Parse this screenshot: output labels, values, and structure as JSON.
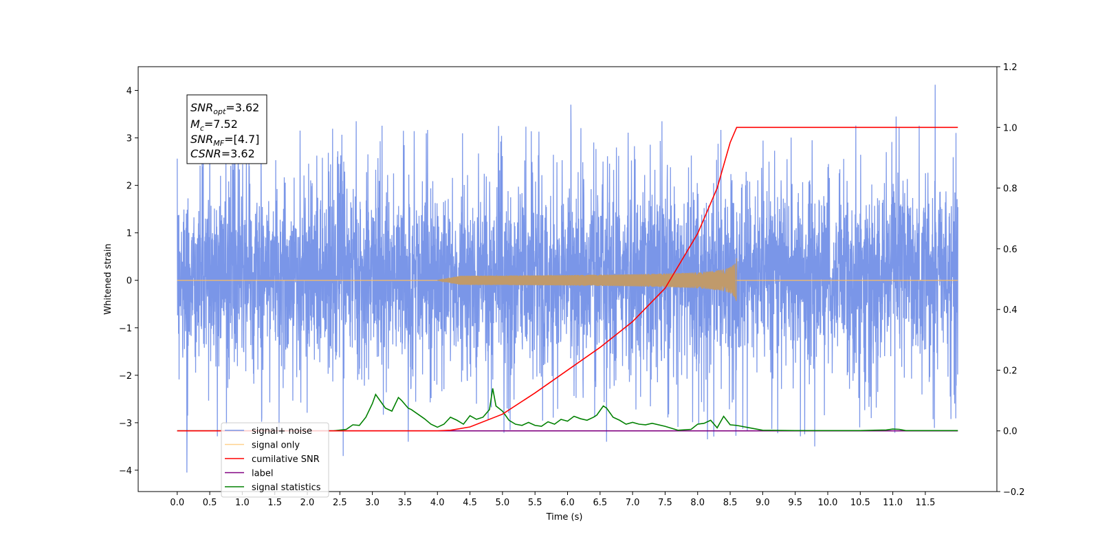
{
  "chart_data": {
    "type": "line",
    "title": "",
    "xlabel": "Time (s)",
    "ylabel": "Whitened strain",
    "xlim": [
      -0.6,
      12.6
    ],
    "ylim": [
      -4.45,
      4.5
    ],
    "y2lim": [
      -0.2,
      1.2
    ],
    "x_ticks": [
      0.0,
      0.5,
      1.0,
      1.5,
      2.0,
      2.5,
      3.0,
      3.5,
      4.0,
      4.5,
      5.0,
      5.5,
      6.0,
      6.5,
      7.0,
      7.5,
      8.0,
      8.5,
      9.0,
      9.5,
      10.0,
      10.5,
      11.0,
      11.5
    ],
    "x_tick_labels": [
      "0.0",
      "0.5",
      "1.0",
      "1.5",
      "2.0",
      "2.5",
      "3.0",
      "3.5",
      "4.0",
      "4.5",
      "5.0",
      "5.5",
      "6.0",
      "6.5",
      "7.0",
      "7.5",
      "8.0",
      "8.5",
      "9.0",
      "9.5",
      "10.0",
      "10.5",
      "11.0",
      "11.5"
    ],
    "y_ticks": [
      -4,
      -3,
      -2,
      -1,
      0,
      1,
      2,
      3,
      4
    ],
    "y_tick_labels": [
      "−4",
      "−3",
      "−2",
      "−1",
      "0",
      "1",
      "2",
      "3",
      "4"
    ],
    "y2_ticks": [
      -0.2,
      0.0,
      0.2,
      0.4,
      0.6,
      0.8,
      1.0,
      1.2
    ],
    "y2_tick_labels": [
      "−0.2",
      "0.0",
      "0.2",
      "0.4",
      "0.6",
      "0.8",
      "1.0",
      "1.2"
    ],
    "grid": false,
    "legend_position": "lower-left",
    "series": [
      {
        "name": "signal+ noise",
        "axis": "left",
        "color": "#7a96e8",
        "description": "whitened noise plus signal, roughly uniform noise band between about -2 and +2.5 with spikes to about ±4",
        "x_range": [
          0.0,
          12.0
        ],
        "band": [
          -2.0,
          2.4
        ],
        "spikes": [
          {
            "x": 0.15,
            "y": -4.05
          },
          {
            "x": 2.55,
            "y": -3.7
          },
          {
            "x": 6.05,
            "y": 3.7
          },
          {
            "x": 11.65,
            "y": 4.12
          },
          {
            "x": 11.05,
            "y": 3.45
          },
          {
            "x": 2.75,
            "y": 3.35
          },
          {
            "x": 4.6,
            "y": -2.6
          },
          {
            "x": 6.6,
            "y": -3.4
          },
          {
            "x": 9.8,
            "y": -3.5
          },
          {
            "x": 3.55,
            "y": -3.4
          },
          {
            "x": 7.45,
            "y": 3.35
          },
          {
            "x": 1.3,
            "y": -2.9
          },
          {
            "x": 8.15,
            "y": -3.35
          },
          {
            "x": 10.9,
            "y": 2.7
          },
          {
            "x": 0.4,
            "y": 2.9
          }
        ]
      },
      {
        "name": "signal only",
        "axis": "left",
        "color": "#ffbe5c",
        "description": "chirp signal growing in amplitude and ending at about 8.6 s",
        "chirp_start": 4.0,
        "chirp_end": 8.6,
        "peak_amplitude": 0.48
      },
      {
        "name": "cumilative SNR",
        "axis": "right",
        "color": "#ff0000",
        "x": [
          0.0,
          4.0,
          4.2,
          4.5,
          5.0,
          5.5,
          6.0,
          6.5,
          7.0,
          7.5,
          8.0,
          8.3,
          8.5,
          8.6,
          12.0
        ],
        "y": [
          0.0,
          0.0,
          0.002,
          0.013,
          0.055,
          0.125,
          0.2,
          0.275,
          0.36,
          0.47,
          0.65,
          0.8,
          0.95,
          1.0,
          1.0
        ]
      },
      {
        "name": "label",
        "axis": "right",
        "color": "#800080",
        "x": [
          0.0,
          12.0
        ],
        "y": [
          0.0,
          0.0
        ]
      },
      {
        "name": "signal statistics",
        "axis": "right",
        "color": "#008000",
        "x": [
          0.0,
          2.4,
          2.6,
          2.7,
          2.8,
          2.9,
          3.0,
          3.05,
          3.15,
          3.2,
          3.3,
          3.4,
          3.45,
          3.55,
          3.6,
          3.7,
          3.8,
          3.9,
          4.0,
          4.1,
          4.2,
          4.3,
          4.4,
          4.5,
          4.6,
          4.7,
          4.8,
          4.85,
          4.9,
          5.0,
          5.1,
          5.2,
          5.3,
          5.4,
          5.5,
          5.6,
          5.7,
          5.8,
          5.9,
          6.0,
          6.1,
          6.2,
          6.3,
          6.4,
          6.45,
          6.55,
          6.6,
          6.7,
          6.8,
          6.9,
          7.0,
          7.1,
          7.2,
          7.3,
          7.5,
          7.7,
          7.9,
          8.0,
          8.1,
          8.2,
          8.3,
          8.4,
          8.5,
          8.6,
          8.8,
          9.0,
          9.5,
          10.0,
          10.5,
          10.9,
          11.0,
          11.1,
          11.2,
          12.0
        ],
        "y": [
          0.0,
          0.0,
          0.005,
          0.02,
          0.018,
          0.045,
          0.09,
          0.12,
          0.09,
          0.075,
          0.065,
          0.11,
          0.1,
          0.075,
          0.07,
          0.055,
          0.04,
          0.022,
          0.012,
          0.022,
          0.045,
          0.035,
          0.022,
          0.05,
          0.038,
          0.045,
          0.07,
          0.14,
          0.082,
          0.065,
          0.035,
          0.022,
          0.018,
          0.028,
          0.018,
          0.015,
          0.03,
          0.022,
          0.038,
          0.032,
          0.048,
          0.04,
          0.035,
          0.045,
          0.052,
          0.082,
          0.075,
          0.045,
          0.035,
          0.022,
          0.028,
          0.022,
          0.02,
          0.025,
          0.015,
          0.002,
          0.005,
          0.022,
          0.025,
          0.035,
          0.01,
          0.048,
          0.02,
          0.018,
          0.01,
          0.002,
          0.001,
          0.001,
          0.001,
          0.003,
          0.006,
          0.005,
          0.001,
          0.001
        ]
      }
    ],
    "legend": [
      {
        "label": "signal+ noise",
        "color": "#7a96e8"
      },
      {
        "label": "signal only",
        "color": "#ffbe5c"
      },
      {
        "label": "cumilative SNR",
        "color": "#ff0000"
      },
      {
        "label": "label",
        "color": "#800080"
      },
      {
        "label": "signal statistics",
        "color": "#008000"
      }
    ],
    "annotations": {
      "snr_opt": {
        "name": "SNR",
        "sub": "opt",
        "value": "=3.62"
      },
      "mc": {
        "name": "M",
        "sub": "c",
        "value": "=7.52"
      },
      "snr_mf": {
        "name": "SNR",
        "sub": "MF",
        "value": "=[4.7]"
      },
      "csnr": {
        "name": "CSNR",
        "sub": "",
        "value": "=3.62"
      }
    }
  }
}
